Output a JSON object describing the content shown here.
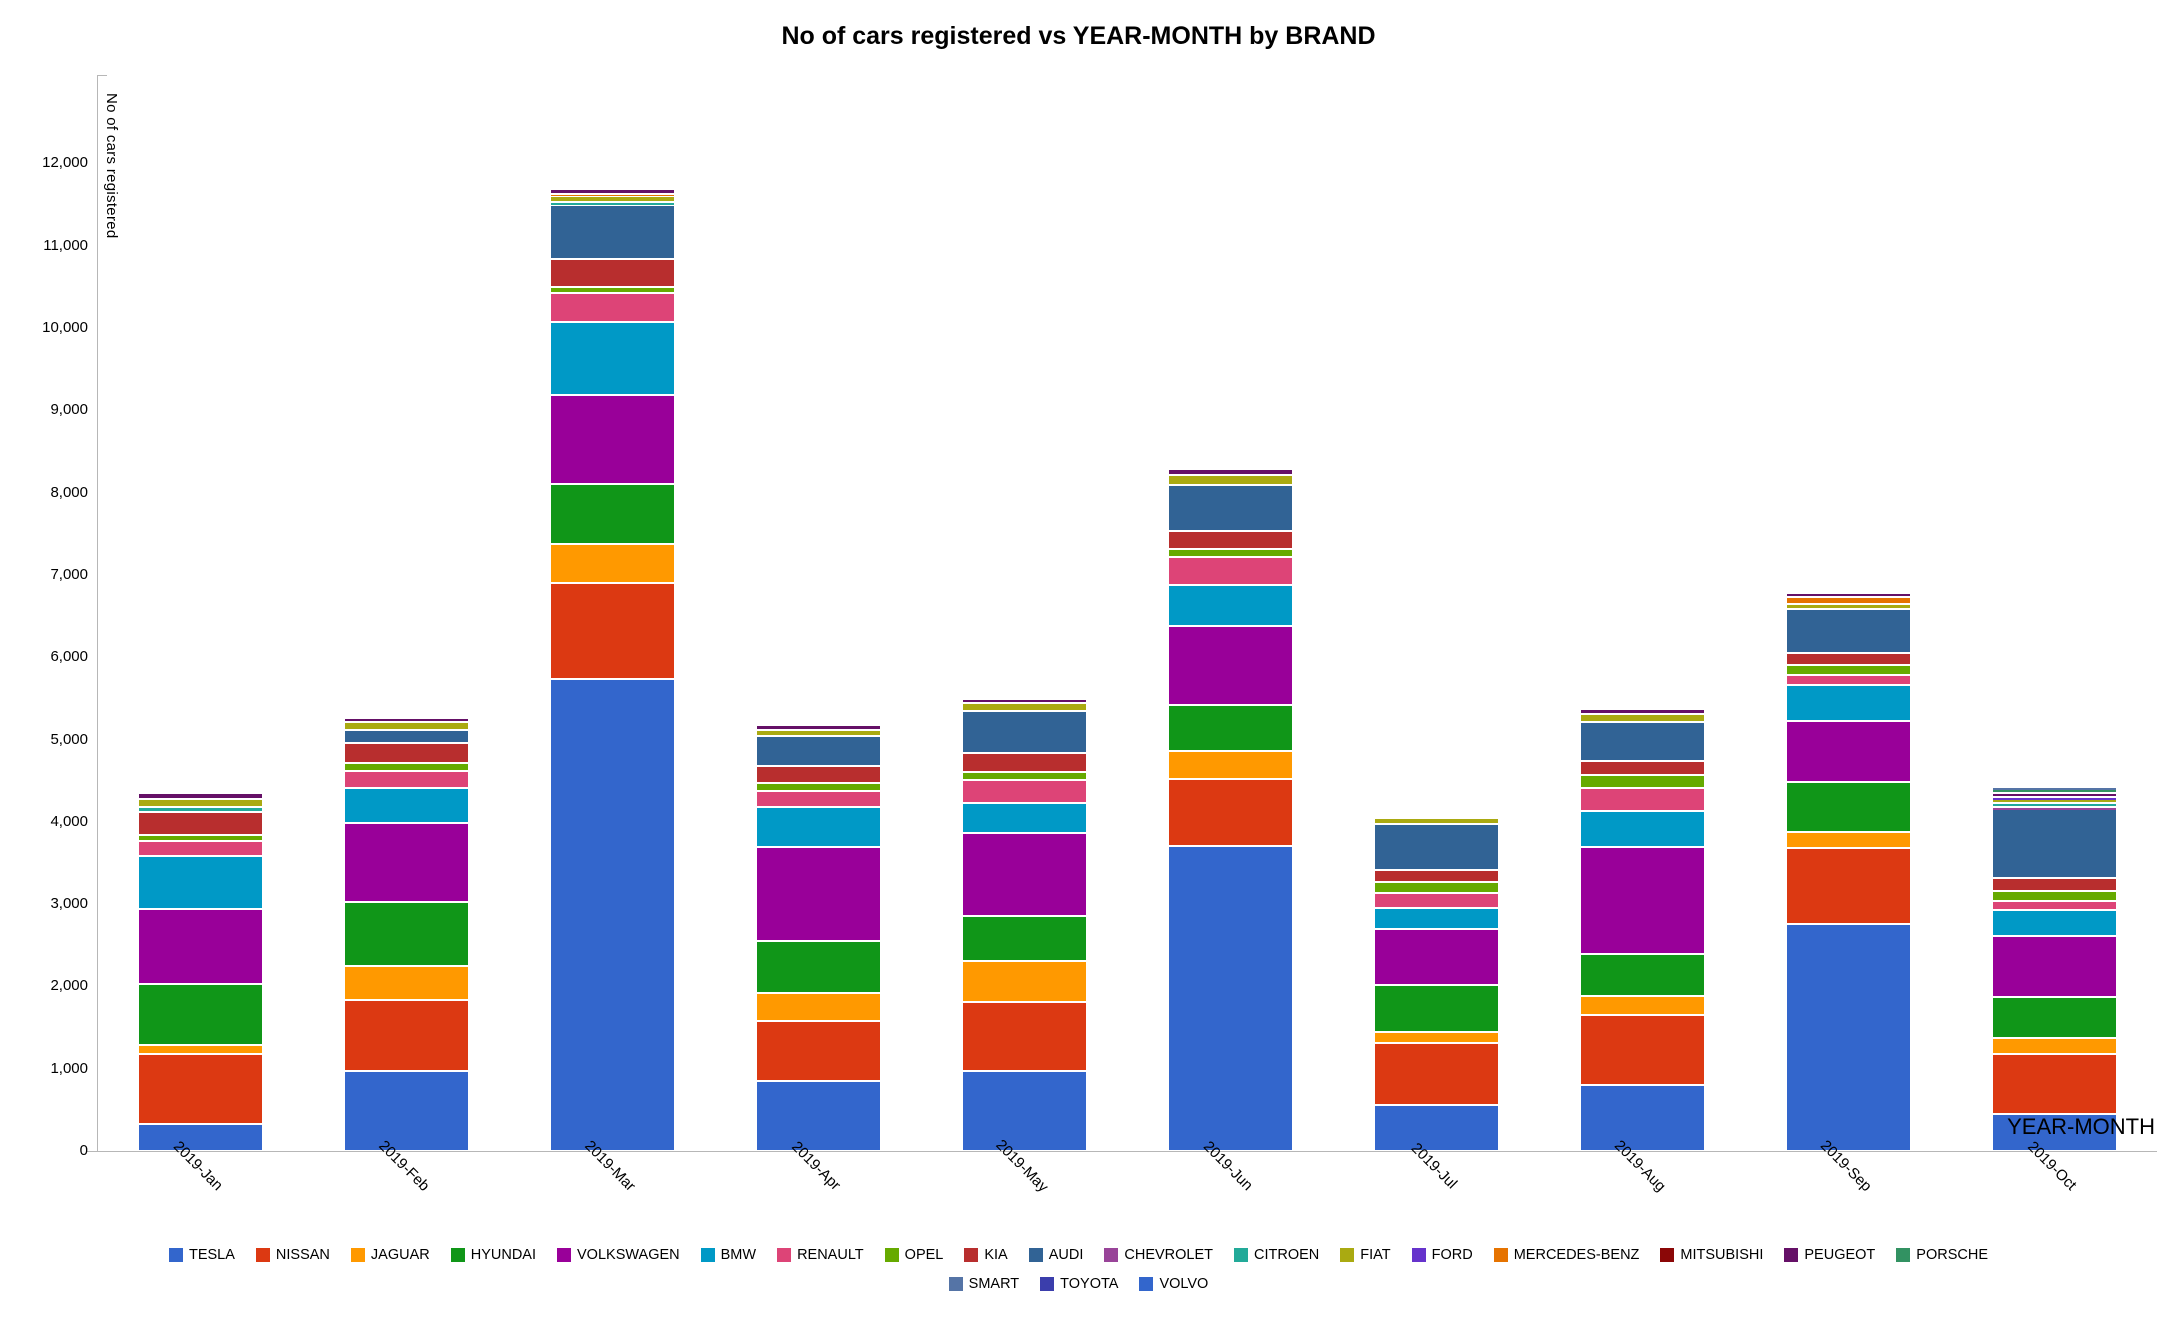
{
  "title": "No of cars registered vs YEAR-MONTH by BRAND",
  "axes": {
    "y_title": "No of cars registered",
    "x_title": "YEAR-MONTH",
    "y_ticks": [
      "0",
      "1,000",
      "2,000",
      "3,000",
      "4,000",
      "5,000",
      "6,000",
      "7,000",
      "8,000",
      "9,000",
      "10,000",
      "11,000",
      "12,000"
    ]
  },
  "chart_data": {
    "type": "bar",
    "stacked": true,
    "title": "No of cars registered vs YEAR-MONTH by BRAND",
    "xlabel": "YEAR-MONTH",
    "ylabel": "No of cars registered",
    "ylim": [
      0,
      12400
    ],
    "y_tick_step": 1000,
    "grid": false,
    "legend_position": "bottom",
    "categories": [
      "2019-Jan",
      "2019-Feb",
      "2019-Mar",
      "2019-Apr",
      "2019-May",
      "2019-Jun",
      "2019-Jul",
      "2019-Aug",
      "2019-Sep",
      "2019-Oct"
    ],
    "series": [
      {
        "name": "TESLA",
        "color": "#3366cc",
        "values": [
          330,
          970,
          5740,
          855,
          975,
          3700,
          560,
          805,
          2760,
          450
        ]
      },
      {
        "name": "NISSAN",
        "color": "#dc3912",
        "values": [
          850,
          870,
          1160,
          725,
          835,
          825,
          755,
          850,
          920,
          725
        ]
      },
      {
        "name": "JAGUAR",
        "color": "#ff9900",
        "values": [
          110,
          410,
          480,
          340,
          500,
          335,
          125,
          230,
          200,
          195
        ]
      },
      {
        "name": "HYUNDAI",
        "color": "#109618",
        "values": [
          735,
          770,
          720,
          635,
          550,
          560,
          580,
          505,
          605,
          500
        ]
      },
      {
        "name": "VOLKSWAGEN",
        "color": "#990099",
        "values": [
          920,
          970,
          1090,
          1140,
          1000,
          965,
          675,
          1300,
          745,
          740
        ]
      },
      {
        "name": "BMW",
        "color": "#0099c6",
        "values": [
          645,
          420,
          880,
          490,
          365,
          495,
          255,
          440,
          435,
          315
        ]
      },
      {
        "name": "RENAULT",
        "color": "#dd4477",
        "values": [
          175,
          210,
          350,
          195,
          285,
          340,
          185,
          280,
          120,
          115
        ]
      },
      {
        "name": "OPEL",
        "color": "#66aa00",
        "values": [
          75,
          100,
          80,
          90,
          95,
          95,
          130,
          160,
          120,
          120
        ]
      },
      {
        "name": "KIA",
        "color": "#b82e2e",
        "values": [
          285,
          240,
          340,
          210,
          230,
          215,
          145,
          165,
          145,
          160
        ]
      },
      {
        "name": "AUDI",
        "color": "#316395",
        "values": [
          0,
          160,
          660,
          365,
          515,
          560,
          565,
          480,
          535,
          830
        ]
      },
      {
        "name": "CHEVROLET",
        "color": "#994499",
        "values": [
          0,
          0,
          0,
          0,
          0,
          0,
          0,
          0,
          0,
          25
        ]
      },
      {
        "name": "CITROEN",
        "color": "#22aa99",
        "values": [
          50,
          0,
          30,
          0,
          0,
          0,
          0,
          0,
          0,
          50
        ]
      },
      {
        "name": "FIAT",
        "color": "#aaaa11",
        "values": [
          105,
          95,
          70,
          70,
          90,
          120,
          75,
          95,
          65,
          50
        ]
      },
      {
        "name": "FORD",
        "color": "#6633cc",
        "values": [
          0,
          0,
          0,
          0,
          0,
          0,
          0,
          0,
          0,
          25
        ]
      },
      {
        "name": "MERCEDES-BENZ",
        "color": "#e67300",
        "values": [
          0,
          0,
          30,
          0,
          0,
          0,
          0,
          0,
          80,
          0
        ]
      },
      {
        "name": "MITSUBISHI",
        "color": "#8b0707",
        "values": [
          0,
          0,
          0,
          0,
          0,
          0,
          0,
          0,
          0,
          0
        ]
      },
      {
        "name": "PEUGEOT",
        "color": "#651067",
        "values": [
          70,
          50,
          60,
          65,
          50,
          75,
          0,
          55,
          55,
          45
        ]
      },
      {
        "name": "PORSCHE",
        "color": "#329262",
        "values": [
          0,
          0,
          0,
          0,
          0,
          0,
          0,
          0,
          0,
          50
        ]
      },
      {
        "name": "SMART",
        "color": "#5574a6",
        "values": [
          0,
          0,
          0,
          0,
          0,
          0,
          0,
          0,
          0,
          25
        ]
      },
      {
        "name": "TOYOTA",
        "color": "#3b3eac",
        "values": [
          0,
          0,
          0,
          0,
          0,
          0,
          0,
          0,
          0,
          0
        ]
      },
      {
        "name": "VOLVO",
        "color": "#3366cc",
        "values": [
          0,
          0,
          0,
          0,
          0,
          0,
          0,
          0,
          0,
          0
        ]
      }
    ],
    "totals": [
      4350,
      5265,
      11690,
      5180,
      5490,
      8285,
      4050,
      5365,
      6785,
      4420
    ]
  }
}
